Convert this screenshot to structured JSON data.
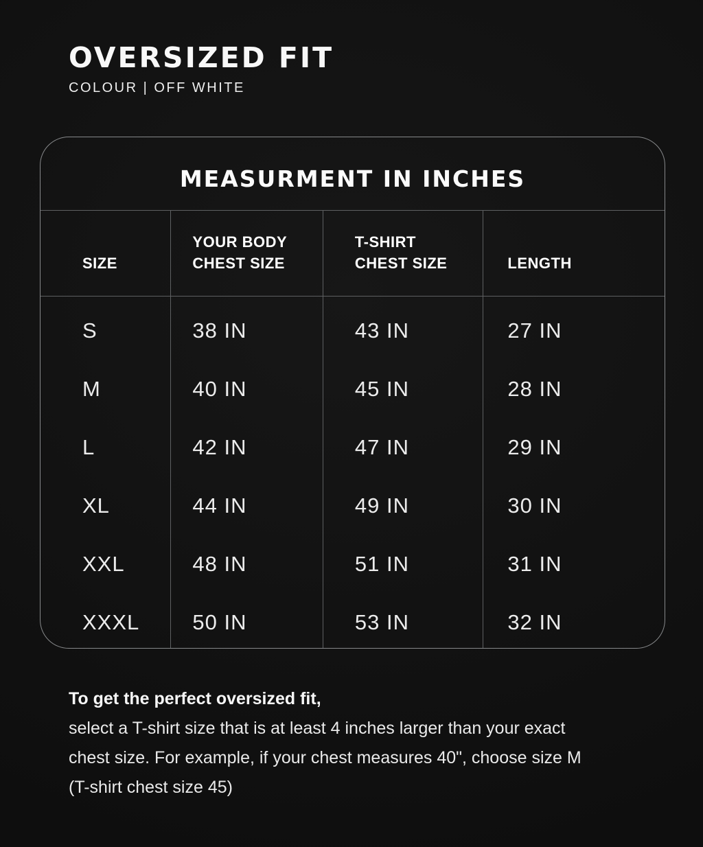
{
  "page": {
    "title": "OVERSIZED FIT",
    "subtitle": "COLOUR | OFF WHITE"
  },
  "size_chart": {
    "title": "MEASURMENT IN INCHES",
    "columns": [
      "SIZE",
      "YOUR BODY\nCHEST SIZE",
      "T-SHIRT\nCHEST SIZE",
      "LENGTH"
    ],
    "unit": "IN",
    "rows": [
      {
        "size": "S",
        "body_chest": "38 IN",
        "tshirt_chest": "43 IN",
        "length": "27 IN"
      },
      {
        "size": "M",
        "body_chest": "40 IN",
        "tshirt_chest": "45 IN",
        "length": "28 IN"
      },
      {
        "size": "L",
        "body_chest": "42 IN",
        "tshirt_chest": "47 IN",
        "length": "29 IN"
      },
      {
        "size": "XL",
        "body_chest": "44 IN",
        "tshirt_chest": "49 IN",
        "length": "30 IN"
      },
      {
        "size": "XXL",
        "body_chest": "48 IN",
        "tshirt_chest": "51 IN",
        "length": "31 IN"
      },
      {
        "size": "XXXL",
        "body_chest": "50 IN",
        "tshirt_chest": "53 IN",
        "length": "32 IN"
      }
    ]
  },
  "footer": {
    "intro_bold": "To get the perfect oversized fit,",
    "lines": [
      "select a T-shirt size that is at least 4 inches larger than your exact",
      "chest size. For example, if your chest measures 40\", choose size M",
      "(T-shirt chest size 45)"
    ]
  },
  "colors": {
    "background": "#101010",
    "text": "#f2f2f2",
    "table_border": "#87898b",
    "table_divider": "#5e6062"
  }
}
